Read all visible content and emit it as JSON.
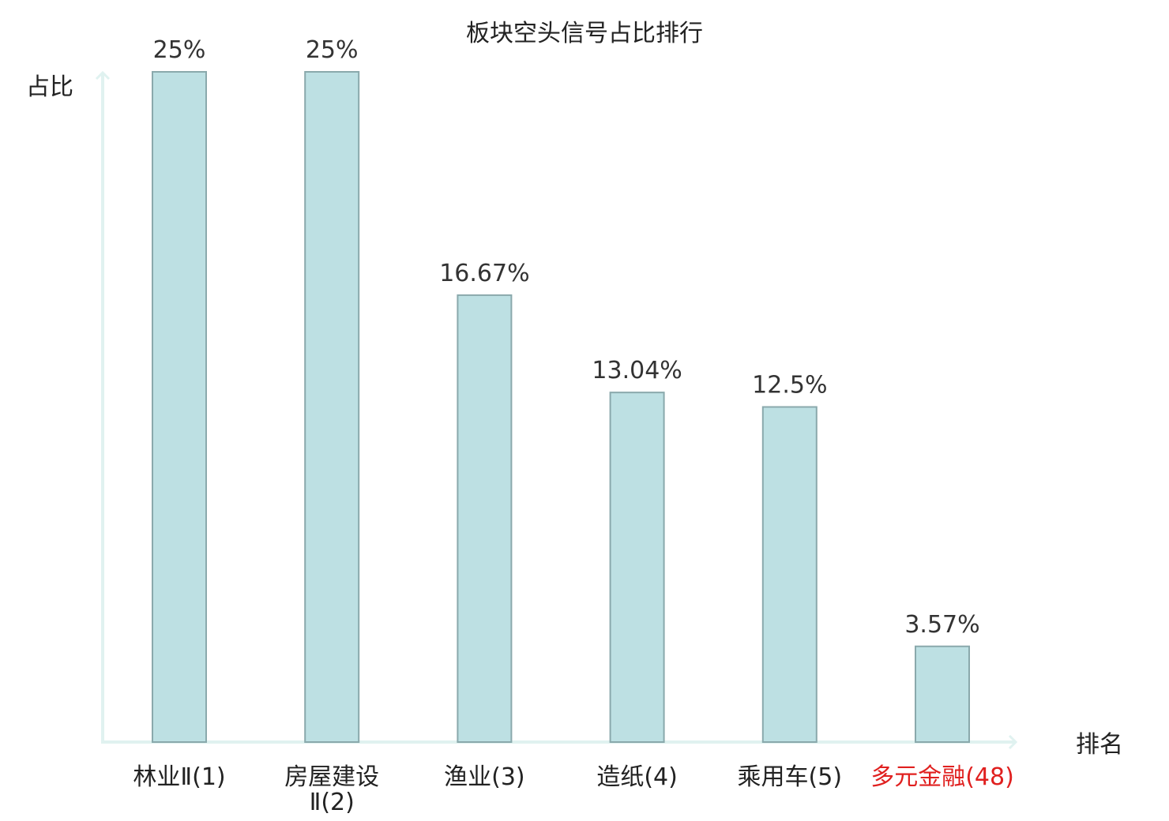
{
  "chart_data": {
    "type": "bar",
    "title": "板块空头信号占比排行",
    "ylabel": "占比",
    "xlabel": "排名",
    "categories": [
      {
        "lines": [
          "林业Ⅱ(1)"
        ],
        "highlight": false
      },
      {
        "lines": [
          "房屋建设",
          "Ⅱ(2)"
        ],
        "highlight": false
      },
      {
        "lines": [
          "渔业(3)"
        ],
        "highlight": false
      },
      {
        "lines": [
          "造纸(4)"
        ],
        "highlight": false
      },
      {
        "lines": [
          "乘用车(5)"
        ],
        "highlight": false
      },
      {
        "lines": [
          "多元金融(48)"
        ],
        "highlight": true
      }
    ],
    "values": [
      25,
      25,
      16.67,
      13.04,
      12.5,
      3.57
    ],
    "value_labels": [
      "25%",
      "25%",
      "16.67%",
      "13.04%",
      "12.5%",
      "3.57%"
    ],
    "ylim": [
      0,
      25
    ],
    "grid": false,
    "colors": {
      "bar_fill": "#bde0e3",
      "bar_stroke": "#8aa9ac",
      "axis": "#e0f2f0",
      "highlight_text": "#e0201f",
      "text": "#222222"
    }
  }
}
